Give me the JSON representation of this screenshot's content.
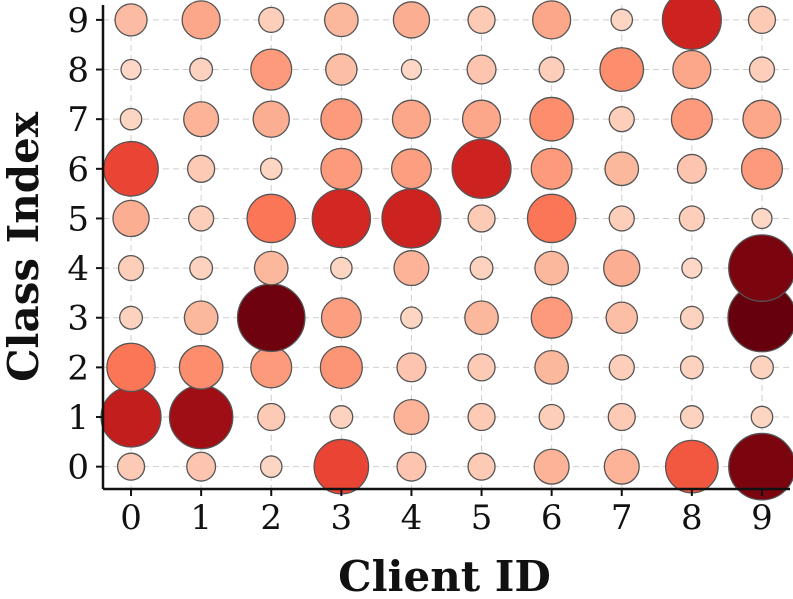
{
  "chart_data": {
    "type": "scatter",
    "subtype": "bubble-matrix",
    "title": "",
    "xlabel": "Client ID",
    "ylabel": "Class Index",
    "x_ticks": [
      "0",
      "1",
      "2",
      "3",
      "4",
      "5",
      "6",
      "7",
      "8",
      "9"
    ],
    "y_ticks": [
      "0",
      "1",
      "2",
      "3",
      "4",
      "5",
      "6",
      "7",
      "8",
      "9"
    ],
    "xlim": [
      -0.4,
      9.4
    ],
    "ylim": [
      -0.45,
      9.3
    ],
    "grid": true,
    "legend": "none",
    "encoding": "size and color intensity proportional to value",
    "color_scale": [
      "#fee0d2",
      "#fcbba1",
      "#fc9272",
      "#fb6a4a",
      "#de2d26",
      "#a50f15",
      "#67000d"
    ],
    "values": [
      [
        0.1,
        0.12,
        0.05,
        0.6,
        0.12,
        0.1,
        0.2,
        0.2,
        0.55,
        0.95
      ],
      [
        0.75,
        0.85,
        0.1,
        0.06,
        0.2,
        0.1,
        0.08,
        0.1,
        0.06,
        0.05
      ],
      [
        0.45,
        0.35,
        0.3,
        0.32,
        0.12,
        0.1,
        0.18,
        0.08,
        0.06,
        0.06
      ],
      [
        0.06,
        0.18,
        0.98,
        0.28,
        0.05,
        0.18,
        0.3,
        0.15,
        0.06,
        1.0
      ],
      [
        0.08,
        0.06,
        0.18,
        0.05,
        0.2,
        0.06,
        0.18,
        0.22,
        0.04,
        0.95
      ],
      [
        0.22,
        0.08,
        0.45,
        0.7,
        0.72,
        0.1,
        0.45,
        0.08,
        0.08,
        0.04
      ],
      [
        0.6,
        0.1,
        0.05,
        0.3,
        0.28,
        0.72,
        0.3,
        0.18,
        0.12,
        0.3
      ],
      [
        0.05,
        0.2,
        0.22,
        0.3,
        0.25,
        0.25,
        0.35,
        0.08,
        0.3,
        0.25
      ],
      [
        0.04,
        0.06,
        0.3,
        0.15,
        0.04,
        0.12,
        0.08,
        0.35,
        0.25,
        0.08
      ],
      [
        0.16,
        0.25,
        0.08,
        0.18,
        0.22,
        0.1,
        0.25,
        0.05,
        0.72,
        0.1
      ]
    ]
  }
}
